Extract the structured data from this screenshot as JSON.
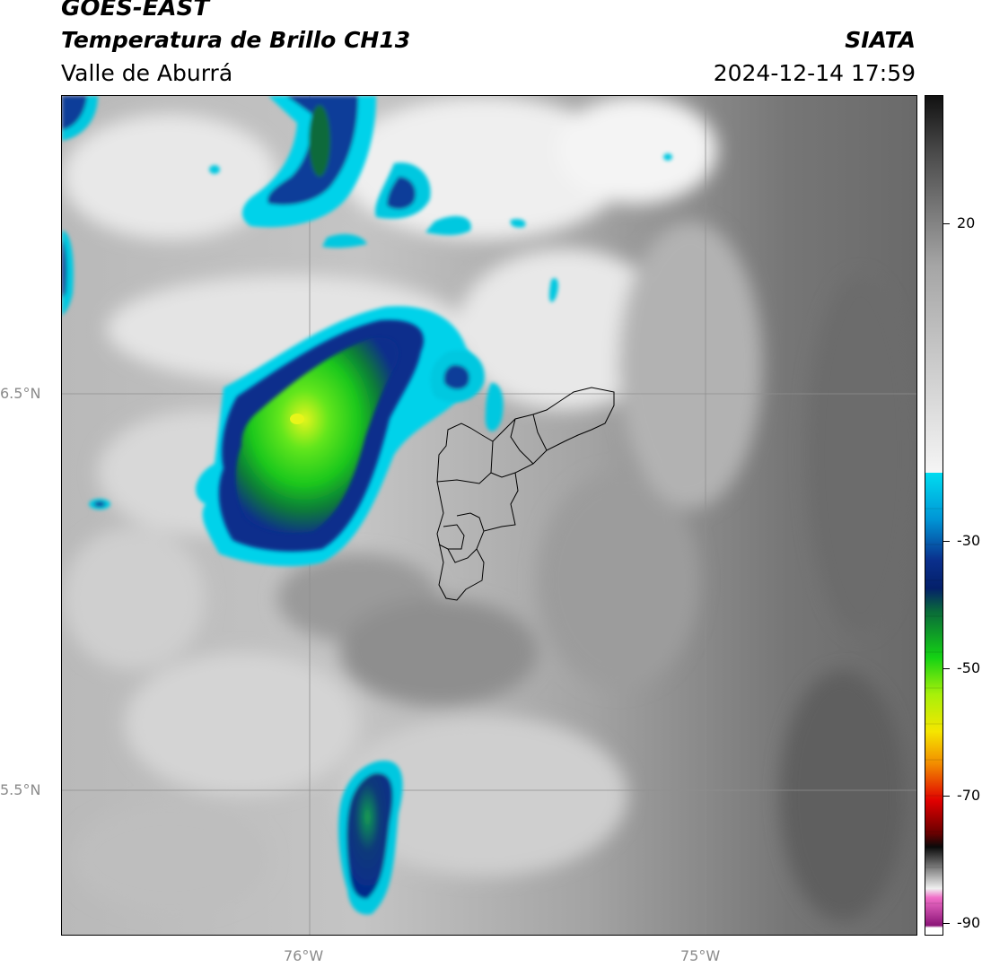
{
  "header": {
    "satellite": "GOES-EAST",
    "product": "Temperatura de Brillo CH13",
    "region": "Valle de Aburrá",
    "agency": "SIATA",
    "datetime": "2024-12-14 17:59"
  },
  "map": {
    "lat_labels": [
      "6.5°N",
      "5.5°N"
    ],
    "lon_labels": [
      "76°W",
      "75°W"
    ],
    "basemap": "grayscale infrared brightness temperature",
    "overlay": "Valle de Aburrá municipal boundaries"
  },
  "colorbar": {
    "tick_labels": [
      "20",
      "-30",
      "-50",
      "-70",
      "-90"
    ],
    "colors": {
      "gray_warm": "#6e6e6e",
      "white": "#f2f2f2",
      "cyan": "#00dcf0",
      "blue": "#0a2f8c",
      "dark_blue": "#041a6a",
      "green": "#14d214",
      "lime": "#a8f00a",
      "yellow": "#f5e600",
      "orange": "#f28c00",
      "red": "#e00000",
      "dark_red": "#6a0000",
      "black": "#0a0a0a",
      "pink": "#f06ec8",
      "purple": "#8c1478"
    }
  }
}
